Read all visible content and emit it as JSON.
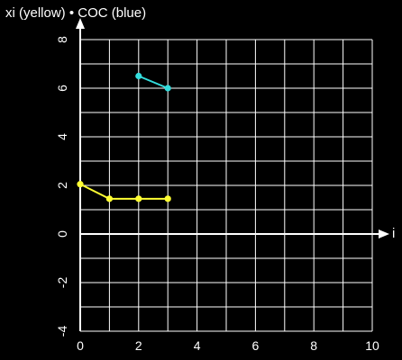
{
  "chart_data": {
    "type": "line",
    "title": "xi (yellow) • COC (blue)",
    "xlabel": "i",
    "ylabel": "",
    "xlim": [
      0,
      10
    ],
    "ylim": [
      -4,
      8
    ],
    "x_ticks": [
      0,
      2,
      4,
      6,
      8,
      10
    ],
    "y_ticks": [
      8,
      6,
      4,
      2,
      0,
      -2,
      -4
    ],
    "grid": true,
    "series": [
      {
        "color": "#ffff33",
        "points": [
          [
            0,
            2.05
          ],
          [
            1,
            1.45
          ],
          [
            2,
            1.45
          ],
          [
            3,
            1.45
          ]
        ]
      },
      {
        "color": "#33dddd",
        "points": [
          [
            2,
            6.5
          ],
          [
            3,
            6.0
          ]
        ]
      }
    ],
    "colors": {
      "background": "#000000",
      "grid": "#ffffff",
      "axis": "#ffffff",
      "text": "#ffffff"
    }
  }
}
